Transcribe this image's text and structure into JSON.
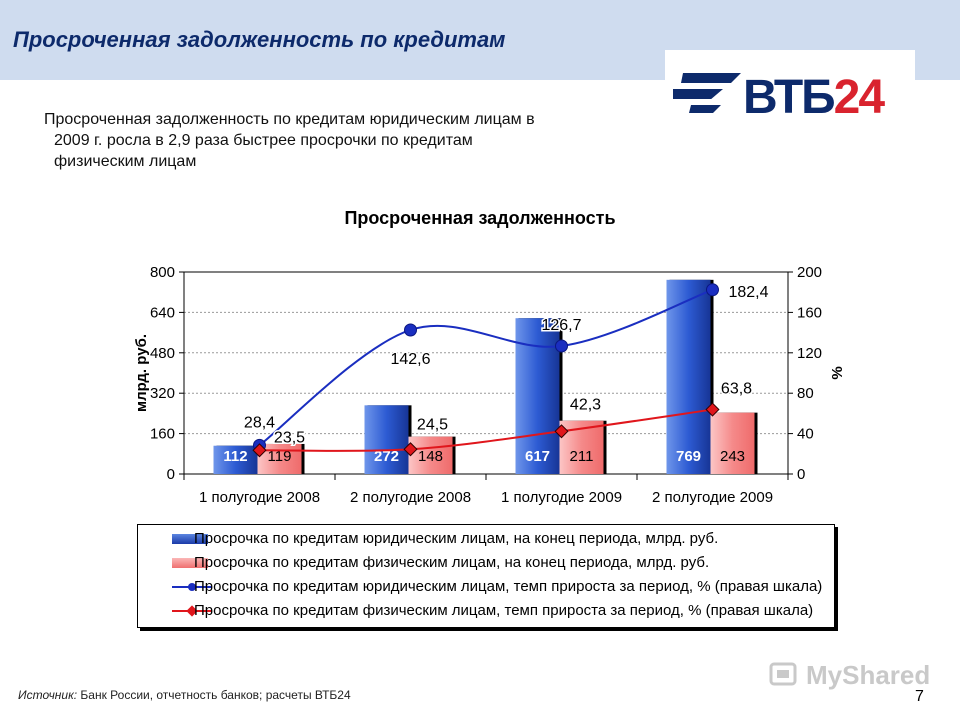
{
  "header": {
    "title": "Просроченная задолженность по кредитам"
  },
  "logo": {
    "text_vtb": "ВТБ",
    "text_num": "24"
  },
  "subtitle": {
    "line1": "Просроченная задолженность по кредитам юридическим лицам в",
    "line2": "2009 г. росла в 2,9 раза быстрее просрочки по кредитам",
    "line3": "физическим лицам"
  },
  "chart_data": {
    "type": "bar",
    "title": "Просроченная задолженность",
    "categories": [
      "1 полугодие 2008",
      "2 полугодие 2008",
      "1 полугодие 2009",
      "2 полугодие 2009"
    ],
    "ylabel": "млрд. руб.",
    "y2label": "%",
    "ylim": [
      0,
      800
    ],
    "y2lim": [
      0,
      200
    ],
    "yticks": [
      "0",
      "160",
      "320",
      "480",
      "640",
      "800"
    ],
    "y2ticks": [
      "0",
      "40",
      "80",
      "120",
      "160",
      "200"
    ],
    "grid": true,
    "series": [
      {
        "name": "Просрочка по кредитам юридическим лицам, на конец периода, млрд. руб.",
        "kind": "bar",
        "axis": "left",
        "color": "#1f4fc8",
        "values": [
          112,
          272,
          617,
          769
        ],
        "labels": [
          "112",
          "272",
          "617",
          "769"
        ]
      },
      {
        "name": "Просрочка по кредитам физическим лицам, на конец периода, млрд. руб.",
        "kind": "bar",
        "axis": "left",
        "color": "#f07f7f",
        "values": [
          119,
          148,
          211,
          243
        ],
        "labels": [
          "119",
          "148",
          "211",
          "243"
        ]
      },
      {
        "name": "Просрочка по кредитам юридическим лицам, темп прироста за период, % (правая шкала)",
        "kind": "line",
        "axis": "right",
        "color": "#1a2ec0",
        "values": [
          28.4,
          142.6,
          126.7,
          182.4
        ],
        "labels": [
          "28,4",
          "142,6",
          "126,7",
          "182,4"
        ]
      },
      {
        "name": "Просрочка по кредитам физическим лицам, темп прироста за период, % (правая шкала)",
        "kind": "line",
        "axis": "right",
        "color": "#e0161c",
        "values": [
          23.5,
          24.5,
          42.3,
          63.8
        ],
        "labels": [
          "23,5",
          "24,5",
          "42,3",
          "63,8"
        ]
      }
    ],
    "legend_position": "bottom"
  },
  "footer": {
    "source_label": "Источник:",
    "source_text": " Банк России, отчетность банков; расчеты ВТБ24",
    "page_number": "7",
    "watermark": "MyShared"
  }
}
